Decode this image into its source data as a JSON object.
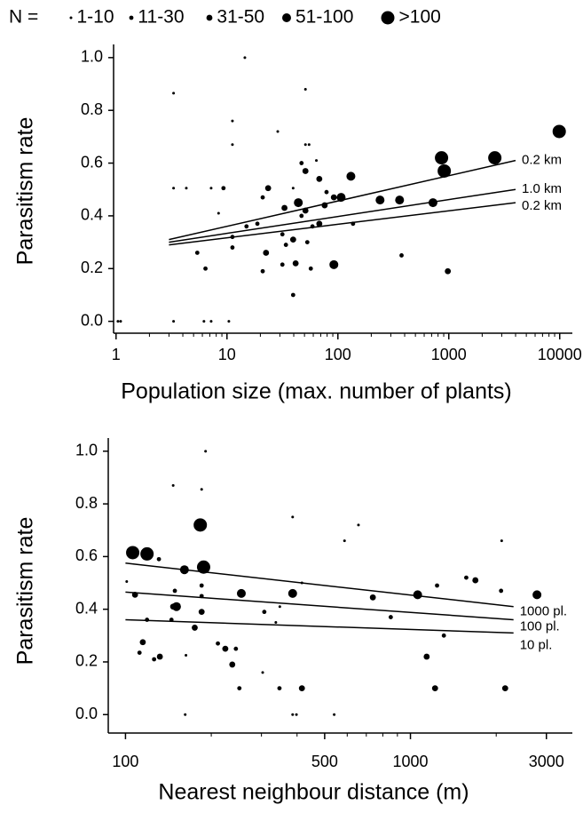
{
  "chart_data": [
    {
      "type": "scatter",
      "legend_title": "N =",
      "xlabel": "Population size (max. number of plants)",
      "ylabel": "Parasitism rate",
      "xscale": "log",
      "xlim": [
        0.95,
        13000
      ],
      "ylim": [
        -0.045,
        1.05
      ],
      "color": "#000000",
      "xticks": [
        1,
        10,
        100,
        1000,
        10000
      ],
      "xminorticks": [
        2,
        3,
        4,
        5,
        6,
        7,
        8,
        9,
        20,
        30,
        40,
        50,
        60,
        70,
        80,
        90,
        200,
        300,
        400,
        500,
        600,
        700,
        800,
        900,
        2000,
        3000,
        4000,
        5000,
        6000,
        7000,
        8000,
        9000
      ],
      "yticks": [
        {
          "value": 0,
          "label": "0.0"
        },
        0.2,
        0.4,
        0.6,
        0.8,
        {
          "value": 1,
          "label": "1.0"
        }
      ],
      "series": [
        {
          "name": "1-10",
          "x": [
            3.3,
            3.3,
            4.3,
            7.2,
            14.5,
            11.2,
            11.2,
            28.7,
            51,
            51,
            55,
            8.4,
            39.5,
            64,
            3.3,
            1.04,
            6.2,
            7.2,
            10.4,
            1.1
          ],
          "values": [
            0.865,
            0.505,
            0.505,
            0.505,
            1.0,
            0.76,
            0.67,
            0.72,
            0.88,
            0.67,
            0.67,
            0.41,
            0.505,
            0.61,
            0.0,
            0.0,
            0.0,
            0.0,
            0.0,
            0.0
          ]
        },
        {
          "name": "11-30",
          "x": [
            9.3,
            5.4,
            6.4,
            11.2,
            11.2,
            15,
            18.8,
            21,
            31.6,
            31.6,
            21,
            47,
            53,
            57,
            39.5,
            79,
            137,
            375,
            59,
            47,
            34
          ],
          "values": [
            0.505,
            0.26,
            0.2,
            0.28,
            0.32,
            0.36,
            0.37,
            0.47,
            0.33,
            0.215,
            0.19,
            0.4,
            0.3,
            0.2,
            0.1,
            0.49,
            0.37,
            0.25,
            0.36,
            0.6,
            0.29
          ]
        },
        {
          "name": "31-50",
          "x": [
            23.5,
            22.5,
            33,
            39.5,
            41.6,
            51,
            68,
            68,
            76,
            92,
            51,
            980
          ],
          "values": [
            0.505,
            0.26,
            0.43,
            0.31,
            0.22,
            0.57,
            0.37,
            0.54,
            0.44,
            0.47,
            0.42,
            0.19
          ]
        },
        {
          "name": "51-100",
          "x": [
            44,
            92,
            107,
            131,
            240,
            360,
            720
          ],
          "values": [
            0.45,
            0.215,
            0.47,
            0.55,
            0.46,
            0.46,
            0.45
          ]
        },
        {
          "name": ">100",
          "x": [
            860,
            910,
            2600,
            9900
          ],
          "values": [
            0.62,
            0.57,
            0.62,
            0.72
          ]
        }
      ],
      "fits": [
        {
          "label": "0.2 km",
          "x": [
            3,
            4000
          ],
          "values": [
            0.31,
            0.61
          ]
        },
        {
          "label": "1.0 km",
          "x": [
            3,
            4000
          ],
          "values": [
            0.3,
            0.5
          ]
        },
        {
          "label": "0.2 km",
          "x": [
            3,
            4000
          ],
          "values": [
            0.29,
            0.45
          ]
        }
      ]
    },
    {
      "type": "scatter",
      "xlabel": "Nearest neighbour distance (m)",
      "ylabel": "Parasitism rate",
      "xscale": "log",
      "xlim": [
        87,
        3700
      ],
      "ylim": [
        -0.07,
        1.05
      ],
      "color": "#000000",
      "xticks": [
        100,
        500,
        1000,
        3000
      ],
      "xminorticks": [
        200,
        300,
        400,
        600,
        700,
        800,
        900,
        2000
      ],
      "yticks": [
        {
          "value": 0,
          "label": "0.0"
        },
        0.2,
        0.4,
        0.6,
        0.8,
        {
          "value": 1,
          "label": "1.0"
        }
      ],
      "series": [
        {
          "x": [
            191,
            147,
            185,
            386,
            657,
            587,
            2090,
            194,
            101,
            163,
            162,
            398,
            386,
            540,
            337,
            348,
            416,
            303
          ],
          "values": [
            1.0,
            0.87,
            0.855,
            0.75,
            0.72,
            0.66,
            0.66,
            0.57,
            0.505,
            0.225,
            0.0,
            0.0,
            0.0,
            0.0,
            0.35,
            0.41,
            0.5,
            0.16
          ]
        },
        {
          "x": [
            149,
            131,
            185,
            185,
            211,
            244,
            251,
            307,
            347,
            853,
            1240,
            1570,
            2080,
            112,
            119,
            126,
            145,
            1310
          ],
          "values": [
            0.47,
            0.59,
            0.49,
            0.45,
            0.27,
            0.25,
            0.1,
            0.39,
            0.1,
            0.37,
            0.49,
            0.52,
            0.47,
            0.235,
            0.36,
            0.21,
            0.36,
            0.3
          ]
        },
        {
          "x": [
            108,
            115,
            132,
            147,
            175,
            185,
            224,
            237,
            416,
            738,
            1140,
            1220,
            1690,
            2150
          ],
          "values": [
            0.455,
            0.275,
            0.22,
            0.41,
            0.33,
            0.39,
            0.25,
            0.19,
            0.1,
            0.445,
            0.22,
            0.1,
            0.51,
            0.1
          ]
        },
        {
          "x": [
            161,
            151,
            255,
            386,
            1060,
            2780
          ],
          "values": [
            0.55,
            0.41,
            0.46,
            0.46,
            0.455,
            0.455
          ]
        },
        {
          "x": [
            106,
            119,
            183,
            188
          ],
          "values": [
            0.615,
            0.61,
            0.72,
            0.56
          ]
        }
      ],
      "fits": [
        {
          "label": "1000 pl.",
          "x": [
            100,
            2300
          ],
          "values": [
            0.575,
            0.41
          ]
        },
        {
          "label": "100 pl.",
          "x": [
            100,
            2300
          ],
          "values": [
            0.465,
            0.36
          ]
        },
        {
          "label": "10 pl.",
          "x": [
            100,
            2300
          ],
          "values": [
            0.36,
            0.31
          ]
        }
      ]
    }
  ]
}
